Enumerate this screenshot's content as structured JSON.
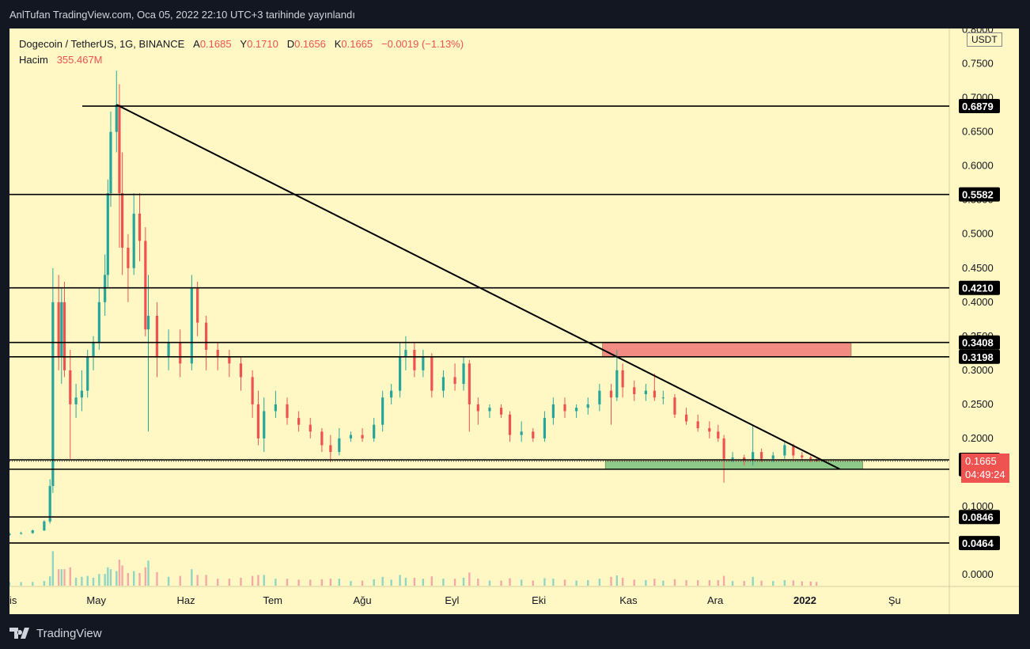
{
  "header": {
    "title": "AnlTufan TradingView.com, Oca 05, 2022 22:10 UTC+3 tarihinde yayınlandı"
  },
  "legend": {
    "symbol": "Dogecoin / TetherUS, 1G, BINANCE",
    "open_label": "A",
    "open": "0.1685",
    "high_label": "Y",
    "high": "0.1710",
    "low_label": "D",
    "low": "0.1656",
    "close_label": "K",
    "close": "0.1665",
    "change": "−0.0019 (−1.13%)",
    "volume_label": "Hacim",
    "volume": "355.467M"
  },
  "currency": "USDT",
  "current_price": {
    "value": "0.1665",
    "countdown": "04:49:24"
  },
  "footer": {
    "brand": "TradingView"
  },
  "chart_data": {
    "type": "candlestick",
    "y_axis_ticks": [
      "0.8000",
      "0.7500",
      "0.7000",
      "0.6500",
      "0.6000",
      "0.5500",
      "0.5000",
      "0.4500",
      "0.4000",
      "0.3500",
      "0.3000",
      "0.2500",
      "0.2000",
      "0.1500",
      "0.1000",
      "0.0500",
      "0.0000"
    ],
    "y_axis_tick_values": [
      0.8,
      0.75,
      0.7,
      0.65,
      0.6,
      0.55,
      0.5,
      0.45,
      0.4,
      0.35,
      0.3,
      0.25,
      0.2,
      0.15,
      0.1,
      0.05,
      0.0
    ],
    "x_axis_ticks": [
      "Nis",
      "May",
      "Haz",
      "Tem",
      "Ağu",
      "Eyl",
      "Eki",
      "Kas",
      "Ara",
      "2022",
      "Şu"
    ],
    "x_axis_dates": [
      "2021-04-01",
      "2021-05-01",
      "2021-06-01",
      "2021-07-01",
      "2021-08-01",
      "2021-09-01",
      "2021-10-01",
      "2021-11-01",
      "2021-12-01",
      "2022-01-01",
      "2022-02-01"
    ],
    "date_range": [
      "2021-04-01",
      "2022-02-15"
    ],
    "ylim": [
      0.0,
      0.8
    ],
    "horizontal_levels": [
      0.6879,
      0.5582,
      0.421,
      0.3408,
      0.3198,
      0.1685,
      0.1547,
      0.0846,
      0.0464
    ],
    "level_labels": [
      "0.6879",
      "0.5582",
      "0.4210",
      "0.3408",
      "0.3198",
      "0.1685",
      "0.1547",
      "0.0846",
      "0.0464"
    ],
    "trendline": {
      "start": [
        "2021-05-08",
        0.69
      ],
      "end": [
        "2022-01-13",
        0.155
      ]
    },
    "zones": [
      {
        "name": "resistance",
        "date_start": "2021-10-23",
        "date_end": "2022-01-17",
        "y_low": 0.3198,
        "y_high": 0.3408,
        "color": "#f28b82"
      },
      {
        "name": "support",
        "date_start": "2021-10-24",
        "date_end": "2022-01-21",
        "y_low": 0.1547,
        "y_high": 0.1665,
        "color": "#8fc98a"
      }
    ],
    "ohlc": [
      [
        "2021-04-01",
        0.058,
        0.062,
        0.057,
        0.06
      ],
      [
        "2021-04-05",
        0.06,
        0.063,
        0.059,
        0.061
      ],
      [
        "2021-04-09",
        0.061,
        0.066,
        0.06,
        0.065
      ],
      [
        "2021-04-13",
        0.065,
        0.08,
        0.064,
        0.078
      ],
      [
        "2021-04-15",
        0.078,
        0.14,
        0.075,
        0.13
      ],
      [
        "2021-04-16",
        0.13,
        0.45,
        0.12,
        0.4
      ],
      [
        "2021-04-18",
        0.4,
        0.44,
        0.3,
        0.32
      ],
      [
        "2021-04-19",
        0.32,
        0.42,
        0.28,
        0.4
      ],
      [
        "2021-04-20",
        0.4,
        0.43,
        0.29,
        0.3
      ],
      [
        "2021-04-22",
        0.3,
        0.33,
        0.17,
        0.25
      ],
      [
        "2021-04-24",
        0.25,
        0.28,
        0.23,
        0.26
      ],
      [
        "2021-04-26",
        0.26,
        0.3,
        0.24,
        0.27
      ],
      [
        "2021-04-28",
        0.27,
        0.33,
        0.26,
        0.32
      ],
      [
        "2021-04-30",
        0.32,
        0.35,
        0.3,
        0.34
      ],
      [
        "2021-05-02",
        0.34,
        0.42,
        0.33,
        0.4
      ],
      [
        "2021-05-04",
        0.4,
        0.47,
        0.38,
        0.44
      ],
      [
        "2021-05-05",
        0.44,
        0.58,
        0.42,
        0.56
      ],
      [
        "2021-05-06",
        0.56,
        0.68,
        0.54,
        0.65
      ],
      [
        "2021-05-08",
        0.65,
        0.74,
        0.62,
        0.69
      ],
      [
        "2021-05-09",
        0.69,
        0.72,
        0.48,
        0.56
      ],
      [
        "2021-05-10",
        0.56,
        0.62,
        0.44,
        0.48
      ],
      [
        "2021-05-12",
        0.48,
        0.5,
        0.4,
        0.45
      ],
      [
        "2021-05-14",
        0.45,
        0.56,
        0.44,
        0.53
      ],
      [
        "2021-05-16",
        0.53,
        0.56,
        0.46,
        0.49
      ],
      [
        "2021-05-18",
        0.49,
        0.51,
        0.35,
        0.36
      ],
      [
        "2021-05-19",
        0.36,
        0.44,
        0.21,
        0.38
      ],
      [
        "2021-05-22",
        0.38,
        0.4,
        0.29,
        0.32
      ],
      [
        "2021-05-26",
        0.32,
        0.36,
        0.3,
        0.34
      ],
      [
        "2021-05-30",
        0.34,
        0.36,
        0.29,
        0.31
      ],
      [
        "2021-06-03",
        0.31,
        0.44,
        0.3,
        0.42
      ],
      [
        "2021-06-05",
        0.42,
        0.43,
        0.35,
        0.37
      ],
      [
        "2021-06-08",
        0.37,
        0.38,
        0.3,
        0.33
      ],
      [
        "2021-06-12",
        0.33,
        0.34,
        0.3,
        0.32
      ],
      [
        "2021-06-16",
        0.32,
        0.33,
        0.29,
        0.31
      ],
      [
        "2021-06-20",
        0.31,
        0.32,
        0.27,
        0.29
      ],
      [
        "2021-06-24",
        0.29,
        0.3,
        0.23,
        0.25
      ],
      [
        "2021-06-26",
        0.25,
        0.27,
        0.19,
        0.2
      ],
      [
        "2021-06-28",
        0.2,
        0.26,
        0.18,
        0.24
      ],
      [
        "2021-07-02",
        0.24,
        0.27,
        0.23,
        0.25
      ],
      [
        "2021-07-06",
        0.25,
        0.26,
        0.22,
        0.23
      ],
      [
        "2021-07-10",
        0.23,
        0.24,
        0.21,
        0.22
      ],
      [
        "2021-07-14",
        0.22,
        0.23,
        0.2,
        0.21
      ],
      [
        "2021-07-18",
        0.21,
        0.215,
        0.18,
        0.19
      ],
      [
        "2021-07-21",
        0.19,
        0.205,
        0.165,
        0.18
      ],
      [
        "2021-07-24",
        0.18,
        0.215,
        0.175,
        0.2
      ],
      [
        "2021-07-28",
        0.2,
        0.21,
        0.195,
        0.205
      ],
      [
        "2021-08-01",
        0.205,
        0.215,
        0.195,
        0.2
      ],
      [
        "2021-08-05",
        0.2,
        0.23,
        0.195,
        0.22
      ],
      [
        "2021-08-08",
        0.22,
        0.27,
        0.21,
        0.26
      ],
      [
        "2021-08-11",
        0.26,
        0.28,
        0.25,
        0.27
      ],
      [
        "2021-08-14",
        0.27,
        0.34,
        0.26,
        0.32
      ],
      [
        "2021-08-16",
        0.32,
        0.35,
        0.3,
        0.33
      ],
      [
        "2021-08-19",
        0.33,
        0.34,
        0.29,
        0.3
      ],
      [
        "2021-08-22",
        0.3,
        0.33,
        0.29,
        0.32
      ],
      [
        "2021-08-25",
        0.32,
        0.325,
        0.26,
        0.27
      ],
      [
        "2021-08-29",
        0.27,
        0.3,
        0.26,
        0.29
      ],
      [
        "2021-09-02",
        0.29,
        0.31,
        0.27,
        0.28
      ],
      [
        "2021-09-05",
        0.28,
        0.32,
        0.27,
        0.31
      ],
      [
        "2021-09-07",
        0.31,
        0.315,
        0.21,
        0.25
      ],
      [
        "2021-09-10",
        0.25,
        0.26,
        0.22,
        0.24
      ],
      [
        "2021-09-14",
        0.24,
        0.25,
        0.23,
        0.245
      ],
      [
        "2021-09-18",
        0.245,
        0.25,
        0.23,
        0.235
      ],
      [
        "2021-09-21",
        0.235,
        0.24,
        0.195,
        0.205
      ],
      [
        "2021-09-25",
        0.205,
        0.225,
        0.195,
        0.21
      ],
      [
        "2021-09-29",
        0.21,
        0.215,
        0.195,
        0.2
      ],
      [
        "2021-10-03",
        0.2,
        0.24,
        0.195,
        0.23
      ],
      [
        "2021-10-06",
        0.23,
        0.26,
        0.22,
        0.25
      ],
      [
        "2021-10-10",
        0.25,
        0.26,
        0.23,
        0.24
      ],
      [
        "2021-10-14",
        0.24,
        0.25,
        0.23,
        0.245
      ],
      [
        "2021-10-18",
        0.245,
        0.26,
        0.235,
        0.25
      ],
      [
        "2021-10-22",
        0.25,
        0.28,
        0.24,
        0.27
      ],
      [
        "2021-10-26",
        0.27,
        0.28,
        0.22,
        0.26
      ],
      [
        "2021-10-28",
        0.26,
        0.33,
        0.255,
        0.3
      ],
      [
        "2021-10-30",
        0.3,
        0.31,
        0.26,
        0.275
      ],
      [
        "2021-11-03",
        0.275,
        0.285,
        0.255,
        0.265
      ],
      [
        "2021-11-07",
        0.265,
        0.28,
        0.255,
        0.27
      ],
      [
        "2021-11-10",
        0.27,
        0.295,
        0.255,
        0.26
      ],
      [
        "2021-11-13",
        0.26,
        0.27,
        0.25,
        0.26
      ],
      [
        "2021-11-17",
        0.26,
        0.265,
        0.23,
        0.235
      ],
      [
        "2021-11-21",
        0.235,
        0.245,
        0.22,
        0.225
      ],
      [
        "2021-11-25",
        0.225,
        0.235,
        0.21,
        0.215
      ],
      [
        "2021-11-29",
        0.215,
        0.225,
        0.2,
        0.21
      ],
      [
        "2021-12-02",
        0.21,
        0.22,
        0.195,
        0.2
      ],
      [
        "2021-12-04",
        0.2,
        0.205,
        0.135,
        0.17
      ],
      [
        "2021-12-07",
        0.17,
        0.18,
        0.165,
        0.172
      ],
      [
        "2021-12-11",
        0.172,
        0.176,
        0.16,
        0.168
      ],
      [
        "2021-12-14",
        0.168,
        0.22,
        0.16,
        0.18
      ],
      [
        "2021-12-17",
        0.18,
        0.185,
        0.165,
        0.17
      ],
      [
        "2021-12-21",
        0.17,
        0.18,
        0.165,
        0.175
      ],
      [
        "2021-12-25",
        0.175,
        0.195,
        0.17,
        0.19
      ],
      [
        "2021-12-28",
        0.19,
        0.192,
        0.17,
        0.175
      ],
      [
        "2021-12-31",
        0.175,
        0.18,
        0.168,
        0.172
      ],
      [
        "2022-01-03",
        0.172,
        0.175,
        0.165,
        0.17
      ],
      [
        "2022-01-05",
        0.1685,
        0.171,
        0.1656,
        0.1665
      ]
    ],
    "volume_series": {
      "name": "Hacim",
      "last": "355.467M"
    }
  }
}
